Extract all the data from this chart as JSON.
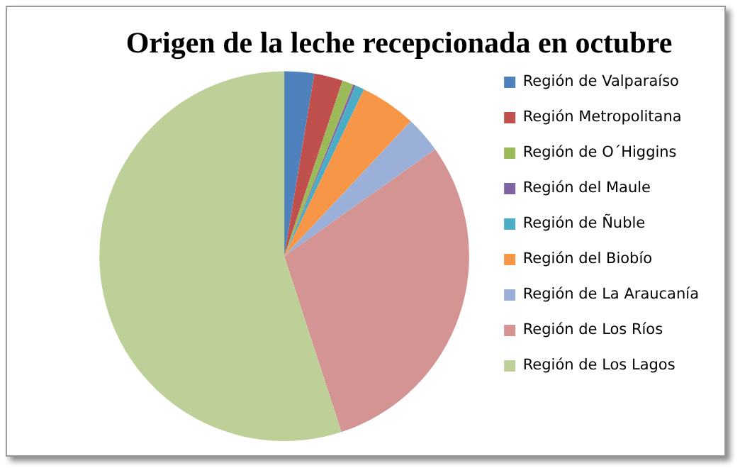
{
  "chart_data": {
    "type": "pie",
    "title": "Origen de la leche recepcionada en octubre",
    "categories": [
      "Región de Valparaíso",
      "Región Metropolitana",
      "Región de O´Higgins",
      "Región del Maule",
      "Región de Ñuble",
      "Región del Biobío",
      "Región de La Araucanía",
      "Región de Los Ríos",
      "Región de Los Lagos"
    ],
    "values": [
      2.6,
      2.5,
      1,
      0.2,
      0.8,
      4.9,
      3.2,
      29.8,
      55
    ],
    "colors": [
      "#4f81bd",
      "#c0504d",
      "#9bbb59",
      "#8064a2",
      "#4bacc6",
      "#f79646",
      "#9bb0d8",
      "#d49494",
      "#bcd098"
    ],
    "legend": "right"
  }
}
